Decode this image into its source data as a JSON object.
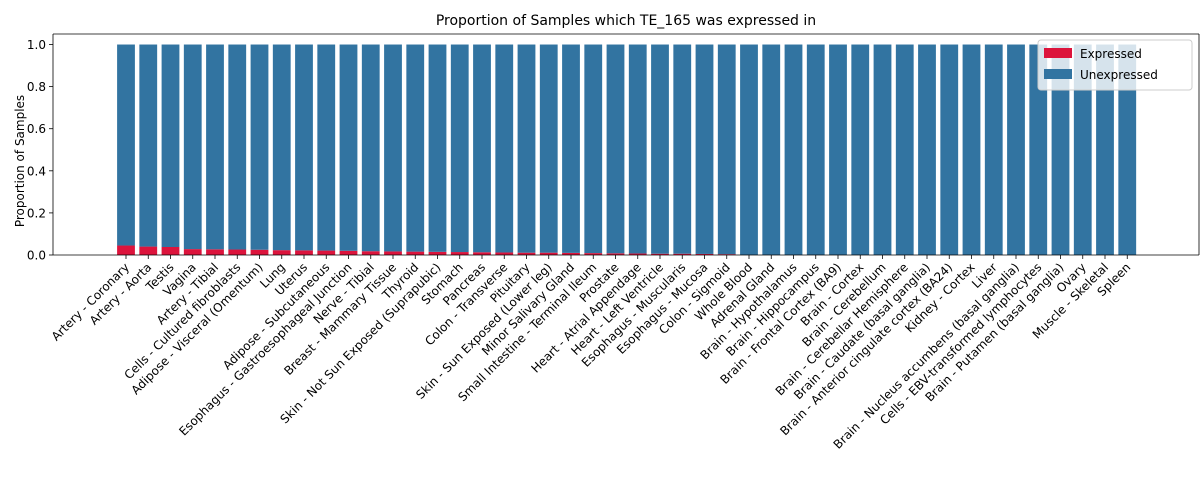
{
  "chart_data": {
    "type": "bar",
    "stacked": true,
    "title": "Proportion of Samples which TE_165 was expressed in",
    "xlabel": "",
    "ylabel": "Proportion of Samples",
    "ylim": [
      0,
      1.05
    ],
    "yticks": [
      "0.0",
      "0.2",
      "0.4",
      "0.6",
      "0.8",
      "1.0"
    ],
    "grid": false,
    "legend_position": "top-right",
    "categories": [
      "Artery - Coronary",
      "Artery - Aorta",
      "Testis",
      "Vagina",
      "Artery - Tibial",
      "Cells - Cultured fibroblasts",
      "Adipose - Visceral (Omentum)",
      "Lung",
      "Uterus",
      "Adipose - Subcutaneous",
      "Esophagus - Gastroesophageal Junction",
      "Nerve - Tibial",
      "Breast - Mammary Tissue",
      "Thyroid",
      "Skin - Not Sun Exposed (Suprapubic)",
      "Stomach",
      "Pancreas",
      "Colon - Transverse",
      "Pituitary",
      "Skin - Sun Exposed (Lower leg)",
      "Minor Salivary Gland",
      "Small Intestine - Terminal Ileum",
      "Prostate",
      "Heart - Atrial Appendage",
      "Heart - Left Ventricle",
      "Esophagus - Muscularis",
      "Esophagus - Mucosa",
      "Colon - Sigmoid",
      "Whole Blood",
      "Adrenal Gland",
      "Brain - Hypothalamus",
      "Brain - Hippocampus",
      "Brain - Frontal Cortex (BA9)",
      "Brain - Cortex",
      "Brain - Cerebellum",
      "Brain - Cerebellar Hemisphere",
      "Brain - Caudate (basal ganglia)",
      "Brain - Anterior cingulate cortex (BA24)",
      "Kidney - Cortex",
      "Liver",
      "Brain - Nucleus accumbens (basal ganglia)",
      "Cells - EBV-transformed lymphocytes",
      "Brain - Putamen (basal ganglia)",
      "Ovary",
      "Muscle - Skeletal",
      "Spleen"
    ],
    "series": [
      {
        "name": "Expressed",
        "color": "#dc143c",
        "values": [
          0.045,
          0.04,
          0.038,
          0.028,
          0.027,
          0.026,
          0.025,
          0.023,
          0.022,
          0.021,
          0.02,
          0.018,
          0.017,
          0.016,
          0.015,
          0.014,
          0.013,
          0.012,
          0.011,
          0.011,
          0.01,
          0.009,
          0.008,
          0.007,
          0.006,
          0.006,
          0.005,
          0.004,
          0,
          0,
          0,
          0,
          0,
          0,
          0,
          0,
          0,
          0,
          0,
          0,
          0,
          0,
          0,
          0,
          0,
          0
        ]
      },
      {
        "name": "Unexpressed",
        "color": "#3274a1",
        "values": [
          0.955,
          0.96,
          0.962,
          0.972,
          0.973,
          0.974,
          0.975,
          0.977,
          0.978,
          0.979,
          0.98,
          0.982,
          0.983,
          0.984,
          0.985,
          0.986,
          0.987,
          0.988,
          0.989,
          0.989,
          0.99,
          0.991,
          0.992,
          0.993,
          0.994,
          0.994,
          0.995,
          0.996,
          1,
          1,
          1,
          1,
          1,
          1,
          1,
          1,
          1,
          1,
          1,
          1,
          1,
          1,
          1,
          1,
          1,
          1
        ]
      }
    ]
  }
}
